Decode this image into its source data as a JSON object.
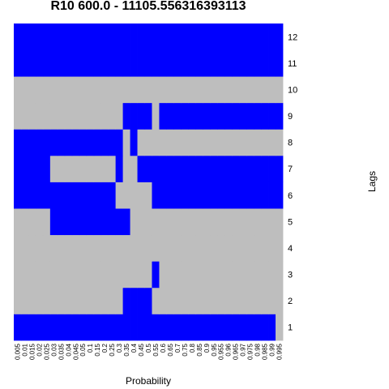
{
  "chart_data": {
    "type": "heatmap",
    "title": "R10 600.0 - 11105.556316393113",
    "xlabel": "Probability",
    "ylabel": "Lags",
    "colors": {
      "on": "#0000ff",
      "off": "#bebebe"
    },
    "x_categories": [
      "0.005",
      "0.01",
      "0.015",
      "0.02",
      "0.025",
      "0.03",
      "0.035",
      "0.04",
      "0.045",
      "0.05",
      "0.1",
      "0.15",
      "0.2",
      "0.25",
      "0.3",
      "0.35",
      "0.4",
      "0.45",
      "0.5",
      "0.55",
      "0.6",
      "0.65",
      "0.7",
      "0.75",
      "0.8",
      "0.85",
      "0.9",
      "0.95",
      "0.955",
      "0.96",
      "0.965",
      "0.97",
      "0.975",
      "0.98",
      "0.985",
      "0.99",
      "0.995"
    ],
    "y_categories": [
      "1",
      "2",
      "3",
      "4",
      "5",
      "6",
      "7",
      "8",
      "9",
      "10",
      "11",
      "12"
    ],
    "blue_ranges": {
      "12": [
        [
          0,
          36
        ]
      ],
      "11": [
        [
          0,
          36
        ]
      ],
      "10": [],
      "9": [
        [
          15,
          18
        ],
        [
          20,
          36
        ]
      ],
      "8": [
        [
          0,
          14
        ],
        [
          16,
          16
        ]
      ],
      "7": [
        [
          0,
          4
        ],
        [
          14,
          14
        ],
        [
          17,
          36
        ]
      ],
      "6": [
        [
          0,
          13
        ],
        [
          19,
          36
        ]
      ],
      "5": [
        [
          5,
          15
        ]
      ],
      "4": [],
      "3": [
        [
          19,
          19
        ]
      ],
      "2": [
        [
          15,
          18
        ]
      ],
      "1": [
        [
          0,
          35
        ]
      ]
    }
  }
}
